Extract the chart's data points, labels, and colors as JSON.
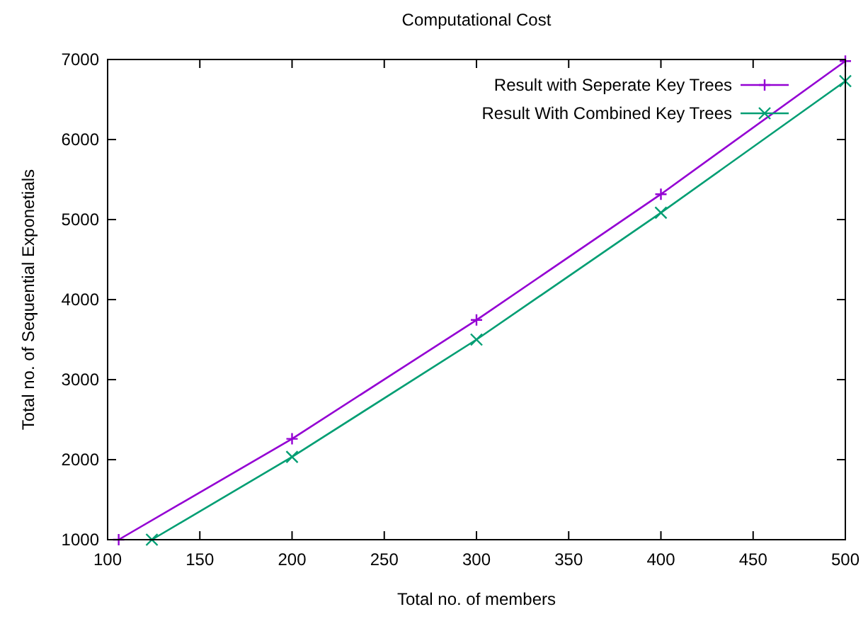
{
  "chart_data": {
    "type": "line",
    "title": "Computational Cost",
    "xlabel": "Total no. of members",
    "ylabel": "Total no. of Sequential Exponetials",
    "xlim": [
      100,
      500
    ],
    "xticks": [
      100,
      150,
      200,
      250,
      300,
      350,
      400,
      450,
      500
    ],
    "ylim": [
      1000,
      7000
    ],
    "yticks": [
      1000,
      2000,
      3000,
      4000,
      5000,
      6000,
      7000
    ],
    "legend": "top right",
    "grid": false,
    "series": [
      {
        "name": "Result with Seperate Key Trees",
        "color": "#9400d3",
        "marker": "plus",
        "x": [
          106,
          200,
          300,
          400,
          500
        ],
        "values": [
          1000,
          2260,
          3745,
          5317,
          6980
        ]
      },
      {
        "name": "Result With Combined Key Trees",
        "color": "#009e73",
        "marker": "cross",
        "x": [
          124,
          200,
          300,
          400,
          500
        ],
        "values": [
          1000,
          2035,
          3500,
          5085,
          6730
        ]
      }
    ]
  }
}
